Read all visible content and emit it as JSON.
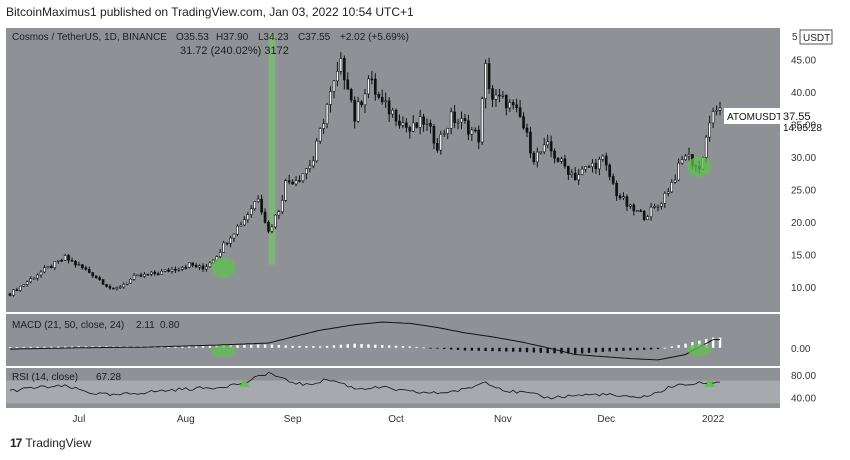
{
  "header": {
    "published": "BitcoinMaximus1 published on TradingView.com, Jan 03, 2022 10:54 UTC+1"
  },
  "footer": {
    "brand": "TradingView",
    "logo": "17"
  },
  "chart_data": {
    "type": "candlestick",
    "pair_label": "Cosmos / TetherUS, 1D, BINANCE",
    "ohlc_o": "O35.53",
    "ohlc_h": "H37.90",
    "ohlc_l": "L34.23",
    "ohlc_c": "C37.55",
    "ohlc_change": "+2.02 (+5.69%)",
    "measure_label": "31.72 (240.02%) 3172",
    "currency": "USDT",
    "currency_prefix": "5",
    "price_ticks": [
      "45.00",
      "40.00",
      "35.00",
      "30.00",
      "25.00",
      "20.00",
      "15.00",
      "10.00"
    ],
    "price_tick_values": [
      45,
      40,
      35,
      30,
      25,
      20,
      15,
      10
    ],
    "ylim": [
      6.5,
      49.5
    ],
    "last_price": {
      "label": "ATOMUSDT",
      "value": "37.55",
      "countdown": "14:05:28",
      "price": 37.55
    },
    "time_labels": [
      "Jul",
      "Aug",
      "Sep",
      "Oct",
      "Nov",
      "Dec",
      "2022"
    ],
    "time_label_days": [
      0,
      31,
      62,
      92,
      123,
      153,
      184
    ],
    "day_range": [
      -20,
      186
    ],
    "close_path_days": [
      -20,
      -12,
      -4,
      4,
      10,
      16,
      24,
      32,
      36,
      40,
      44,
      48,
      52,
      55,
      58,
      60,
      64,
      68,
      72,
      76,
      78,
      80,
      84,
      88,
      92,
      96,
      100,
      104,
      108,
      112,
      116,
      118,
      120,
      124,
      128,
      132,
      136,
      140,
      144,
      148,
      152,
      156,
      160,
      164,
      168,
      172,
      176,
      180,
      183,
      186
    ],
    "close_path": [
      9.0,
      12.0,
      14.5,
      12.0,
      9.5,
      11.5,
      12.3,
      13.5,
      12.8,
      15.0,
      18.0,
      20.5,
      24.0,
      18.5,
      22.0,
      26.0,
      27.0,
      29.5,
      38.0,
      44.0,
      41.5,
      36.0,
      42.0,
      38.0,
      36.5,
      34.0,
      35.5,
      32.0,
      36.0,
      35.0,
      33.0,
      43.5,
      39.0,
      38.5,
      36.0,
      30.0,
      31.5,
      29.0,
      27.0,
      28.5,
      29.5,
      24.5,
      22.0,
      21.0,
      22.5,
      26.0,
      30.5,
      28.0,
      35.5,
      37.55
    ],
    "highlight_bar_days": [
      55,
      57
    ],
    "highlight_bar_price_range": [
      13.5,
      49.0
    ],
    "green_markers": [
      {
        "day": 42,
        "price": 13.0
      },
      {
        "day": 180,
        "price": 28.5
      }
    ],
    "macd": {
      "label": "MACD (21, 50, close, 24)",
      "value": "2.11",
      "signal": "0.80",
      "ticks": [
        "0.00"
      ],
      "tick_values": [
        0
      ],
      "ylim": [
        -2.4,
        4.4
      ],
      "line_days": [
        -20,
        0,
        20,
        40,
        55,
        62,
        70,
        80,
        88,
        96,
        104,
        112,
        120,
        128,
        136,
        144,
        152,
        160,
        168,
        176,
        184
      ],
      "line_values": [
        -0.2,
        0.0,
        0.1,
        0.4,
        0.7,
        1.6,
        2.6,
        3.4,
        3.8,
        3.6,
        3.0,
        2.2,
        1.6,
        0.9,
        0.0,
        -1.0,
        -1.3,
        -1.6,
        -1.8,
        -1.0,
        1.2
      ],
      "hist_days": [
        -20,
        0,
        20,
        40,
        55,
        62,
        70,
        80,
        88,
        96,
        104,
        112,
        120,
        128,
        136,
        144,
        152,
        160,
        168,
        176,
        184
      ],
      "hist_values": [
        0.1,
        0.2,
        0.2,
        0.3,
        0.5,
        0.3,
        0.2,
        0.6,
        0.4,
        0.2,
        -0.1,
        -0.4,
        -0.5,
        -0.6,
        -0.8,
        -0.9,
        -0.6,
        -0.4,
        -0.2,
        0.6,
        1.5
      ],
      "green_markers": [
        {
          "day": 42,
          "value": -0.5
        },
        {
          "day": 180,
          "value": -0.3
        }
      ]
    },
    "rsi": {
      "label": "RSI (14, close)",
      "value": "67.28",
      "ticks": [
        "80.00",
        "40.00"
      ],
      "tick_values": [
        80,
        40
      ],
      "band": [
        30,
        70
      ],
      "ylim": [
        22,
        92
      ],
      "line_days": [
        -20,
        -12,
        -4,
        4,
        10,
        20,
        30,
        40,
        48,
        55,
        60,
        66,
        72,
        76,
        80,
        88,
        96,
        104,
        112,
        118,
        124,
        130,
        136,
        144,
        152,
        160,
        166,
        172,
        178,
        184
      ],
      "line_values": [
        52,
        58,
        60,
        48,
        44,
        50,
        55,
        58,
        66,
        84,
        70,
        62,
        72,
        66,
        56,
        58,
        50,
        48,
        54,
        68,
        52,
        48,
        40,
        44,
        46,
        40,
        44,
        60,
        64,
        67.28
      ],
      "arrows": [
        {
          "day": 48,
          "value": 66
        },
        {
          "day": 183,
          "value": 66
        }
      ]
    }
  }
}
